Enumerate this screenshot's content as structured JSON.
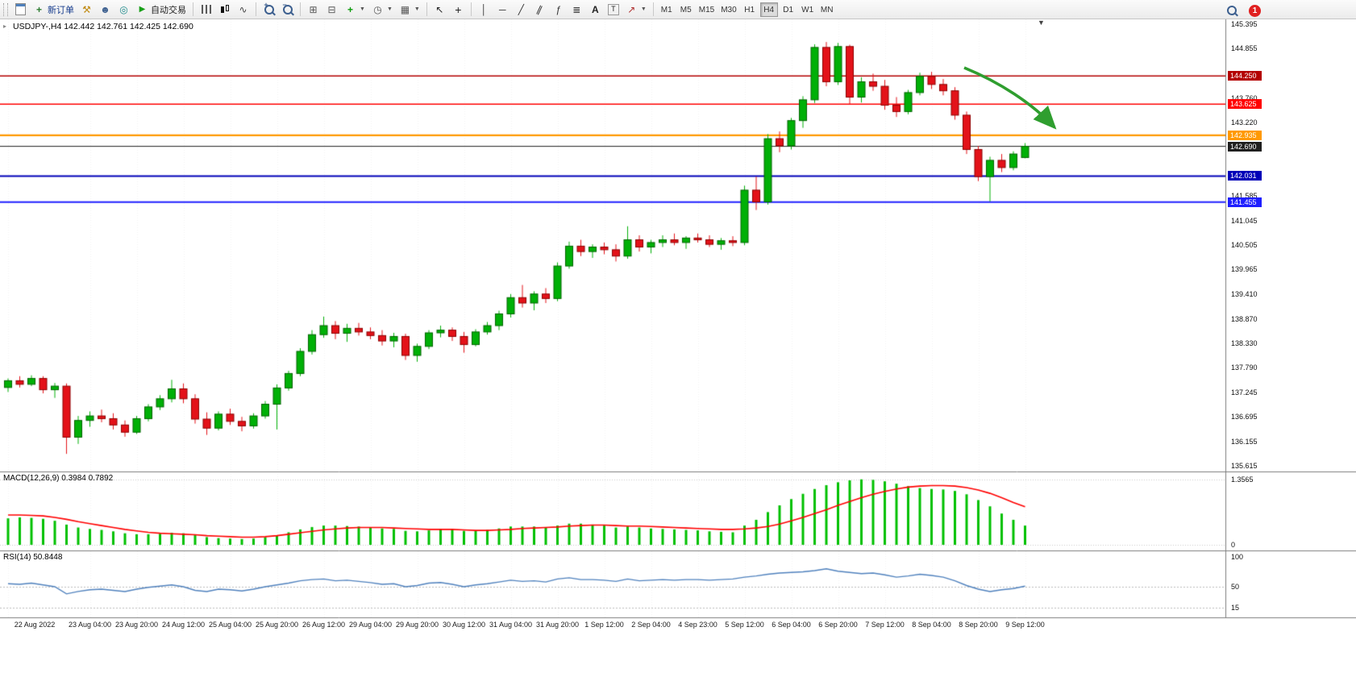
{
  "toolbar": {
    "new_order_label": "新订单",
    "auto_trading_label": "自动交易",
    "timeframes": [
      "M1",
      "M5",
      "M15",
      "M30",
      "H1",
      "H4",
      "D1",
      "W1",
      "MN"
    ],
    "active_timeframe": "H4",
    "notification_count": "1"
  },
  "chart_header": {
    "title": "USDJPY-,H4 142.442 142.761 142.425 142.690"
  },
  "panels": {
    "macd_label": "MACD(12,26,9) 0.3984 0.7892",
    "rsi_label": "RSI(14) 50.8448"
  },
  "price_axis": {
    "labels": [
      "145.395",
      "144.855",
      "143.760",
      "143.220",
      "141.585",
      "141.045",
      "140.505",
      "139.965",
      "139.410",
      "138.870",
      "138.330",
      "137.790",
      "137.245",
      "136.695",
      "136.155",
      "135.615"
    ]
  },
  "macd_axis": {
    "labels": [
      "1.3565",
      "0"
    ]
  },
  "rsi_axis": {
    "labels": [
      "100",
      "50",
      "15"
    ]
  },
  "chart_data": {
    "type": "candlestick",
    "symbol": "USDJPY-",
    "timeframe": "H4",
    "ohlc": {
      "open": 142.442,
      "high": 142.761,
      "low": 142.425,
      "close": 142.69
    },
    "price_range": [
      135.615,
      145.395
    ],
    "bull_color": "#00b007",
    "bear_color": "#e31219",
    "candles": [
      [
        137.35,
        137.55,
        137.25,
        137.5
      ],
      [
        137.5,
        137.6,
        137.35,
        137.42
      ],
      [
        137.42,
        137.62,
        137.38,
        137.55
      ],
      [
        137.55,
        137.6,
        137.22,
        137.3
      ],
      [
        137.3,
        137.45,
        137.12,
        137.38
      ],
      [
        137.38,
        137.44,
        135.88,
        136.25
      ],
      [
        136.25,
        136.72,
        136.1,
        136.62
      ],
      [
        136.62,
        136.82,
        136.48,
        136.72
      ],
      [
        136.72,
        136.86,
        136.58,
        136.66
      ],
      [
        136.66,
        136.78,
        136.42,
        136.52
      ],
      [
        136.52,
        136.62,
        136.26,
        136.36
      ],
      [
        136.36,
        136.72,
        136.32,
        136.66
      ],
      [
        136.66,
        136.98,
        136.6,
        136.92
      ],
      [
        136.92,
        137.18,
        136.85,
        137.1
      ],
      [
        137.1,
        137.52,
        137.02,
        137.32
      ],
      [
        137.32,
        137.44,
        137.0,
        137.1
      ],
      [
        137.1,
        137.2,
        136.55,
        136.65
      ],
      [
        136.65,
        136.8,
        136.3,
        136.45
      ],
      [
        136.45,
        136.82,
        136.4,
        136.76
      ],
      [
        136.76,
        136.88,
        136.52,
        136.6
      ],
      [
        136.6,
        136.7,
        136.38,
        136.5
      ],
      [
        136.5,
        136.78,
        136.44,
        136.72
      ],
      [
        136.72,
        137.05,
        136.66,
        136.98
      ],
      [
        136.98,
        137.42,
        136.42,
        137.34
      ],
      [
        137.34,
        137.72,
        137.28,
        137.66
      ],
      [
        137.66,
        138.22,
        137.6,
        138.15
      ],
      [
        138.15,
        138.62,
        138.08,
        138.52
      ],
      [
        138.52,
        138.92,
        138.45,
        138.72
      ],
      [
        138.72,
        138.82,
        138.42,
        138.55
      ],
      [
        138.55,
        138.76,
        138.36,
        138.66
      ],
      [
        138.66,
        138.78,
        138.5,
        138.58
      ],
      [
        138.58,
        138.68,
        138.42,
        138.5
      ],
      [
        138.5,
        138.62,
        138.28,
        138.38
      ],
      [
        138.38,
        138.56,
        138.24,
        138.48
      ],
      [
        138.48,
        138.54,
        137.96,
        138.06
      ],
      [
        138.06,
        138.32,
        137.92,
        138.26
      ],
      [
        138.26,
        138.62,
        138.2,
        138.56
      ],
      [
        138.56,
        138.72,
        138.46,
        138.62
      ],
      [
        138.62,
        138.68,
        138.38,
        138.48
      ],
      [
        138.48,
        138.58,
        138.12,
        138.3
      ],
      [
        138.3,
        138.64,
        138.26,
        138.58
      ],
      [
        138.58,
        138.8,
        138.52,
        138.72
      ],
      [
        138.72,
        139.05,
        138.62,
        138.98
      ],
      [
        138.98,
        139.42,
        138.9,
        139.34
      ],
      [
        139.34,
        139.62,
        139.12,
        139.22
      ],
      [
        139.22,
        139.48,
        139.06,
        139.42
      ],
      [
        139.42,
        139.55,
        139.22,
        139.32
      ],
      [
        139.32,
        140.12,
        139.26,
        140.04
      ],
      [
        140.04,
        140.58,
        139.98,
        140.48
      ],
      [
        140.48,
        140.62,
        140.26,
        140.36
      ],
      [
        140.36,
        140.52,
        140.22,
        140.46
      ],
      [
        140.46,
        140.56,
        140.3,
        140.4
      ],
      [
        140.4,
        140.52,
        140.14,
        140.26
      ],
      [
        140.26,
        140.92,
        140.2,
        140.62
      ],
      [
        140.62,
        140.72,
        140.36,
        140.46
      ],
      [
        140.46,
        140.62,
        140.32,
        140.56
      ],
      [
        140.56,
        140.72,
        140.46,
        140.62
      ],
      [
        140.62,
        140.76,
        140.5,
        140.56
      ],
      [
        140.56,
        140.7,
        140.42,
        140.66
      ],
      [
        140.66,
        140.76,
        140.56,
        140.62
      ],
      [
        140.62,
        140.72,
        140.46,
        140.52
      ],
      [
        140.52,
        140.66,
        140.4,
        140.6
      ],
      [
        140.6,
        140.7,
        140.48,
        140.56
      ],
      [
        140.56,
        141.82,
        140.5,
        141.72
      ],
      [
        141.72,
        142.02,
        141.28,
        141.46
      ],
      [
        141.46,
        142.96,
        141.4,
        142.86
      ],
      [
        142.86,
        143.02,
        142.56,
        142.7
      ],
      [
        142.7,
        143.32,
        142.62,
        143.26
      ],
      [
        143.26,
        143.8,
        143.1,
        143.72
      ],
      [
        143.72,
        144.95,
        143.65,
        144.88
      ],
      [
        144.88,
        145.0,
        144.02,
        144.12
      ],
      [
        144.12,
        144.98,
        144.05,
        144.9
      ],
      [
        144.9,
        144.94,
        143.62,
        143.78
      ],
      [
        143.78,
        144.22,
        143.66,
        144.12
      ],
      [
        144.12,
        144.3,
        143.92,
        144.02
      ],
      [
        144.02,
        144.16,
        143.5,
        143.6
      ],
      [
        143.6,
        143.78,
        143.34,
        143.46
      ],
      [
        143.46,
        143.94,
        143.4,
        143.88
      ],
      [
        143.88,
        144.32,
        143.82,
        144.24
      ],
      [
        144.24,
        144.34,
        143.96,
        144.06
      ],
      [
        144.06,
        144.18,
        143.82,
        143.92
      ],
      [
        143.92,
        144.0,
        143.28,
        143.38
      ],
      [
        143.38,
        143.46,
        142.52,
        142.62
      ],
      [
        142.62,
        142.7,
        141.92,
        142.02
      ],
      [
        142.02,
        142.46,
        141.47,
        142.38
      ],
      [
        142.38,
        142.52,
        142.12,
        142.22
      ],
      [
        142.22,
        142.58,
        142.16,
        142.52
      ],
      [
        142.442,
        142.761,
        142.425,
        142.69
      ]
    ],
    "horizontal_levels": [
      {
        "price": 144.25,
        "label": "144.250",
        "color": "#b40000",
        "width": 1.5
      },
      {
        "price": 143.625,
        "label": "143.625",
        "color": "#ff0000",
        "width": 1.5
      },
      {
        "price": 142.935,
        "label": "142.935",
        "color": "#ff9900",
        "width": 2.2
      },
      {
        "price": 142.69,
        "label": "142.690",
        "color": "#1f1f1f",
        "width": 1.0
      },
      {
        "price": 142.031,
        "label": "142.031",
        "color": "#0000b8",
        "width": 1.8
      },
      {
        "price": 141.455,
        "label": "141.455",
        "color": "#1f1fff",
        "width": 2.2
      }
    ],
    "time_labels": [
      "22 Aug 2022",
      "23 Aug 04:00",
      "23 Aug 20:00",
      "24 Aug 12:00",
      "25 Aug 04:00",
      "25 Aug 20:00",
      "26 Aug 12:00",
      "29 Aug 04:00",
      "29 Aug 20:00",
      "30 Aug 12:00",
      "31 Aug 04:00",
      "31 Aug 20:00",
      "1 Sep 12:00",
      "2 Sep 04:00",
      "4 Sep 23:00",
      "5 Sep 12:00",
      "6 Sep 04:00",
      "6 Sep 20:00",
      "7 Sep 12:00",
      "8 Sep 04:00",
      "8 Sep 20:00",
      "9 Sep 12:00"
    ],
    "time_label_candle_indices": [
      0,
      7,
      11,
      15,
      19,
      23,
      27,
      31,
      35,
      39,
      43,
      47,
      51,
      55,
      59,
      63,
      67,
      71,
      75,
      79,
      83,
      87
    ],
    "indicators": [
      {
        "name": "MACD",
        "params": [
          12,
          26,
          9
        ],
        "current": [
          0.3984,
          0.7892
        ],
        "range": [
          0,
          1.3565
        ],
        "histogram_color": "#00c000",
        "signal_color": "#ff0000",
        "histogram": [
          0.55,
          0.57,
          0.56,
          0.54,
          0.5,
          0.42,
          0.36,
          0.33,
          0.31,
          0.28,
          0.24,
          0.22,
          0.22,
          0.23,
          0.25,
          0.24,
          0.2,
          0.16,
          0.14,
          0.13,
          0.12,
          0.13,
          0.16,
          0.2,
          0.26,
          0.32,
          0.37,
          0.4,
          0.4,
          0.39,
          0.38,
          0.36,
          0.34,
          0.33,
          0.29,
          0.28,
          0.3,
          0.32,
          0.32,
          0.29,
          0.29,
          0.31,
          0.34,
          0.38,
          0.38,
          0.38,
          0.36,
          0.4,
          0.44,
          0.44,
          0.42,
          0.4,
          0.36,
          0.38,
          0.36,
          0.34,
          0.33,
          0.32,
          0.31,
          0.3,
          0.28,
          0.27,
          0.26,
          0.4,
          0.52,
          0.68,
          0.82,
          0.95,
          1.06,
          1.16,
          1.24,
          1.3,
          1.34,
          1.36,
          1.35,
          1.32,
          1.27,
          1.22,
          1.18,
          1.16,
          1.15,
          1.12,
          1.05,
          0.93,
          0.8,
          0.65,
          0.52,
          0.4
        ],
        "signal": [
          0.62,
          0.62,
          0.61,
          0.6,
          0.57,
          0.53,
          0.48,
          0.44,
          0.4,
          0.36,
          0.32,
          0.29,
          0.26,
          0.24,
          0.23,
          0.22,
          0.21,
          0.19,
          0.18,
          0.17,
          0.16,
          0.16,
          0.17,
          0.19,
          0.22,
          0.25,
          0.28,
          0.31,
          0.33,
          0.35,
          0.36,
          0.36,
          0.36,
          0.35,
          0.34,
          0.33,
          0.32,
          0.32,
          0.32,
          0.31,
          0.3,
          0.3,
          0.31,
          0.32,
          0.34,
          0.35,
          0.36,
          0.37,
          0.39,
          0.4,
          0.41,
          0.41,
          0.4,
          0.39,
          0.39,
          0.38,
          0.37,
          0.36,
          0.35,
          0.34,
          0.33,
          0.32,
          0.32,
          0.33,
          0.35,
          0.38,
          0.43,
          0.5,
          0.57,
          0.65,
          0.73,
          0.82,
          0.9,
          0.98,
          1.05,
          1.11,
          1.16,
          1.2,
          1.22,
          1.23,
          1.23,
          1.22,
          1.19,
          1.14,
          1.07,
          0.98,
          0.88,
          0.79
        ]
      },
      {
        "name": "RSI",
        "params": [
          14
        ],
        "current": 50.8448,
        "range": [
          0,
          100
        ],
        "line_color": "#4f81bd",
        "levels": [
          50,
          15
        ],
        "values": [
          55,
          54,
          56,
          53,
          50,
          38,
          42,
          45,
          46,
          44,
          42,
          46,
          49,
          51,
          53,
          50,
          44,
          42,
          46,
          45,
          43,
          46,
          50,
          53,
          56,
          60,
          62,
          63,
          60,
          61,
          59,
          57,
          54,
          55,
          50,
          52,
          56,
          57,
          54,
          50,
          53,
          55,
          58,
          61,
          59,
          60,
          58,
          63,
          65,
          62,
          62,
          61,
          59,
          63,
          60,
          61,
          62,
          61,
          62,
          62,
          61,
          62,
          63,
          66,
          68,
          71,
          73,
          74,
          75,
          77,
          80,
          76,
          74,
          72,
          73,
          70,
          66,
          68,
          71,
          69,
          66,
          60,
          52,
          46,
          42,
          45,
          47,
          51
        ]
      }
    ],
    "annotations": [
      {
        "type": "arrow",
        "direction": "down-right",
        "color": "#2f9e2f",
        "from": [
          1196,
          60
        ],
        "to": [
          1308,
          134
        ]
      }
    ]
  }
}
